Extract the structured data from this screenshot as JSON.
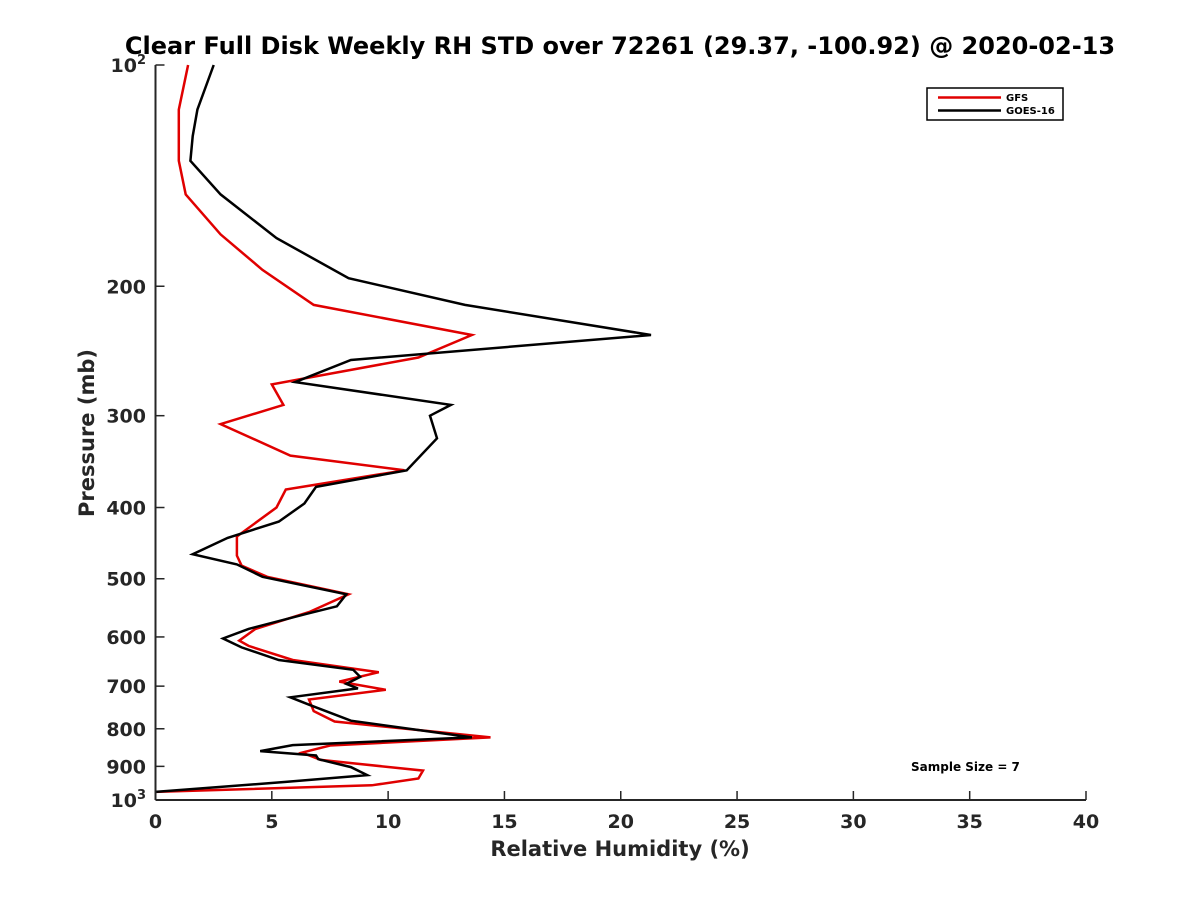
{
  "chart_data": {
    "type": "line",
    "title": "Clear Full Disk Weekly RH STD over 72261 (29.37, -100.92) @ 2020-02-13",
    "xlabel": "Relative Humidity (%)",
    "ylabel": "Pressure (mb)",
    "xlim": [
      0,
      40
    ],
    "ylim": [
      100,
      1000
    ],
    "y_scale": "log",
    "y_reversed": true,
    "x_ticks": [
      "0",
      "5",
      "10",
      "15",
      "20",
      "25",
      "30",
      "35",
      "40"
    ],
    "y_ticks": [
      {
        "value": 100,
        "base": "10",
        "exp": "2"
      },
      {
        "value": 200,
        "label": "200"
      },
      {
        "value": 300,
        "label": "300"
      },
      {
        "value": 400,
        "label": "400"
      },
      {
        "value": 500,
        "label": "500"
      },
      {
        "value": 600,
        "label": "600"
      },
      {
        "value": 700,
        "label": "700"
      },
      {
        "value": 800,
        "label": "800"
      },
      {
        "value": 900,
        "label": "900"
      },
      {
        "value": 1000,
        "base": "10",
        "exp": "3"
      }
    ],
    "grid": false,
    "legend_position": "top-right",
    "annotation": "Sample Size = 7",
    "series": [
      {
        "name": "GFS",
        "color": "#e00000",
        "points": [
          [
            1.4,
            100
          ],
          [
            1.0,
            115
          ],
          [
            1.0,
            125
          ],
          [
            1.0,
            135
          ],
          [
            1.3,
            150
          ],
          [
            2.8,
            170
          ],
          [
            4.6,
            190
          ],
          [
            6.8,
            212
          ],
          [
            13.6,
            233
          ],
          [
            11.3,
            250
          ],
          [
            5.0,
            272
          ],
          [
            5.5,
            290
          ],
          [
            2.8,
            308
          ],
          [
            5.8,
            340
          ],
          [
            10.7,
            356
          ],
          [
            5.6,
            378
          ],
          [
            5.2,
            400
          ],
          [
            3.5,
            438
          ],
          [
            3.5,
            465
          ],
          [
            3.7,
            480
          ],
          [
            4.8,
            497
          ],
          [
            8.3,
            525
          ],
          [
            6.6,
            555
          ],
          [
            4.3,
            585
          ],
          [
            3.6,
            607
          ],
          [
            4.0,
            617
          ],
          [
            5.9,
            645
          ],
          [
            9.6,
            670
          ],
          [
            7.9,
            690
          ],
          [
            9.9,
            708
          ],
          [
            6.6,
            730
          ],
          [
            6.8,
            757
          ],
          [
            7.7,
            782
          ],
          [
            14.4,
            822
          ],
          [
            7.5,
            843
          ],
          [
            6.3,
            862
          ],
          [
            7.1,
            882
          ],
          [
            11.5,
            912
          ],
          [
            11.3,
            935
          ],
          [
            9.3,
            955
          ],
          [
            0.0,
            975
          ]
        ]
      },
      {
        "name": "GOES-16",
        "color": "#000000",
        "points": [
          [
            2.5,
            100
          ],
          [
            1.8,
            115
          ],
          [
            1.6,
            125
          ],
          [
            1.5,
            135
          ],
          [
            2.8,
            150
          ],
          [
            5.2,
            172
          ],
          [
            8.3,
            195
          ],
          [
            13.3,
            212
          ],
          [
            21.3,
            233
          ],
          [
            8.4,
            252
          ],
          [
            6.0,
            270
          ],
          [
            12.7,
            290
          ],
          [
            11.8,
            300
          ],
          [
            12.1,
            322
          ],
          [
            10.8,
            356
          ],
          [
            6.9,
            375
          ],
          [
            6.4,
            395
          ],
          [
            5.3,
            418
          ],
          [
            3.1,
            440
          ],
          [
            1.6,
            463
          ],
          [
            3.5,
            478
          ],
          [
            4.6,
            497
          ],
          [
            8.2,
            525
          ],
          [
            7.8,
            545
          ],
          [
            6.5,
            558
          ],
          [
            4.0,
            585
          ],
          [
            2.9,
            603
          ],
          [
            3.7,
            620
          ],
          [
            5.3,
            645
          ],
          [
            8.5,
            665
          ],
          [
            8.8,
            680
          ],
          [
            8.2,
            695
          ],
          [
            8.7,
            705
          ],
          [
            5.8,
            725
          ],
          [
            6.6,
            742
          ],
          [
            8.4,
            780
          ],
          [
            13.6,
            822
          ],
          [
            5.9,
            842
          ],
          [
            4.5,
            858
          ],
          [
            6.9,
            870
          ],
          [
            7.0,
            880
          ],
          [
            8.4,
            902
          ],
          [
            9.1,
            925
          ],
          [
            5.6,
            945
          ],
          [
            0.0,
            975
          ]
        ]
      }
    ]
  }
}
